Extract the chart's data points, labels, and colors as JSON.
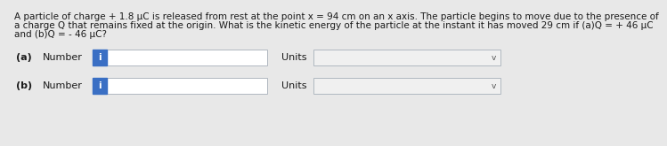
{
  "title_line1": "A particle of charge + 1.8 μC is released from rest at the point x = 94 cm on an x axis. The particle begins to move due to the presence of",
  "title_line2": "a charge Q that remains fixed at the origin. What is the kinetic energy of the particle at the instant it has moved 29 cm if (a)Q = + 46 μC",
  "title_line3": "and (b)Q = - 46 μC?",
  "label_a": "(a)",
  "label_b": "(b)",
  "number_label": "Number",
  "units_label": "Units",
  "bg_color": "#e8e8e8",
  "input_box_color": "#ffffff",
  "input_box_border": "#b0b8c0",
  "units_box_color": "#f0f0f0",
  "units_box_border": "#b0b8c0",
  "info_button_color": "#3a6fc4",
  "info_button_text": "i",
  "text_color": "#1a1a1a",
  "font_size_body": 7.5,
  "font_size_label": 8.0,
  "dropdown_arrow": "v"
}
